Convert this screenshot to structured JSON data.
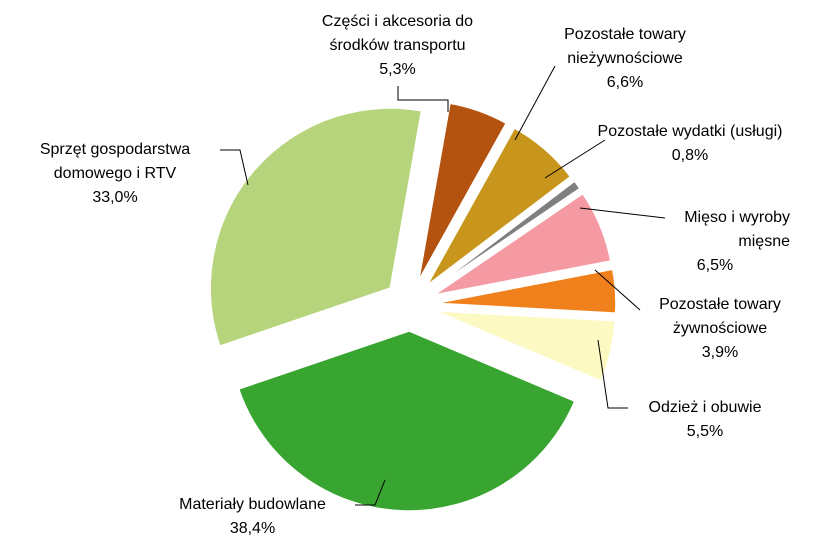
{
  "chart_data": {
    "type": "pie",
    "categories": [
      "Części i akcesoria do środków transportu",
      "Pozostałe towary nieżywnościowe",
      "Pozostałe wydatki (usługi)",
      "Mięso i wyroby mięsne",
      "Pozostałe towary żywnościowe",
      "Odzież i obuwie",
      "Materiały budowlane",
      "Sprzęt gospodarstwa domowego i RTV"
    ],
    "values": [
      5.3,
      6.6,
      0.8,
      6.5,
      3.9,
      5.5,
      38.4,
      33.0
    ],
    "value_labels": [
      "5,3%",
      "6,6%",
      "0,8%",
      "6,5%",
      "3,9%",
      "5,5%",
      "38,4%",
      "33,0%"
    ],
    "colors": [
      "#b4520f",
      "#c8961c",
      "#7f7f7f",
      "#f59aa2",
      "#f0801c",
      "#fcfac2",
      "#38a530",
      "#b6d47c"
    ]
  }
}
